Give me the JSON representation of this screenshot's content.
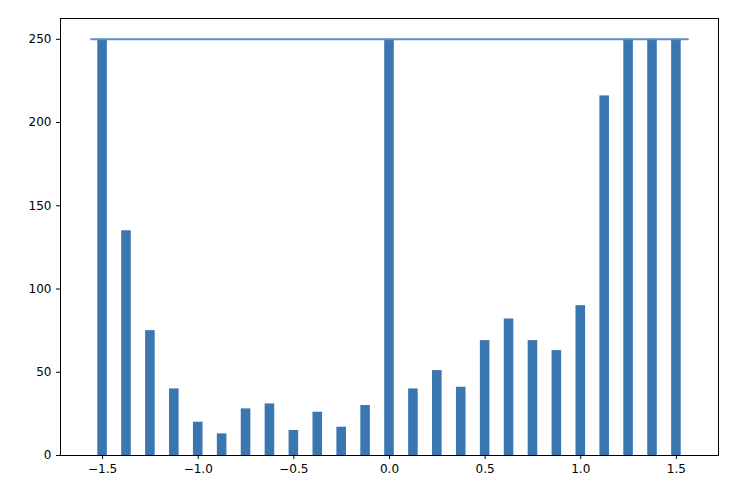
{
  "chart_data": {
    "type": "bar",
    "x": [
      -1.5,
      -1.375,
      -1.25,
      -1.125,
      -1.0,
      -0.875,
      -0.75,
      -0.625,
      -0.5,
      -0.375,
      -0.25,
      -0.125,
      0.0,
      0.125,
      0.25,
      0.375,
      0.5,
      0.625,
      0.75,
      0.875,
      1.0,
      1.125,
      1.25,
      1.375,
      1.5
    ],
    "values": [
      250,
      135,
      75,
      40,
      20,
      13,
      28,
      31,
      15,
      26,
      17,
      30,
      250,
      40,
      51,
      41,
      69,
      82,
      69,
      63,
      90,
      216,
      250,
      250,
      250
    ],
    "color": "#3a76b0",
    "reference_line": {
      "y": 250,
      "xmin": -1.56,
      "xmax": 1.56,
      "color": "#5b8ec4"
    },
    "xlim": [
      -1.72,
      1.72
    ],
    "xticks": [
      {
        "value": -1.5,
        "label": "−1.5"
      },
      {
        "value": -1.0,
        "label": "−1.0"
      },
      {
        "value": -0.5,
        "label": "−0.5"
      },
      {
        "value": 0,
        "label": "0.0"
      },
      {
        "value": 0.5,
        "label": "0.5"
      },
      {
        "value": 1.0,
        "label": "1.0"
      },
      {
        "value": 1.5,
        "label": "1.5"
      }
    ],
    "ylim": [
      0,
      262.5
    ],
    "yticks": [
      0,
      50,
      100,
      150,
      200,
      250
    ],
    "grid": false
  }
}
